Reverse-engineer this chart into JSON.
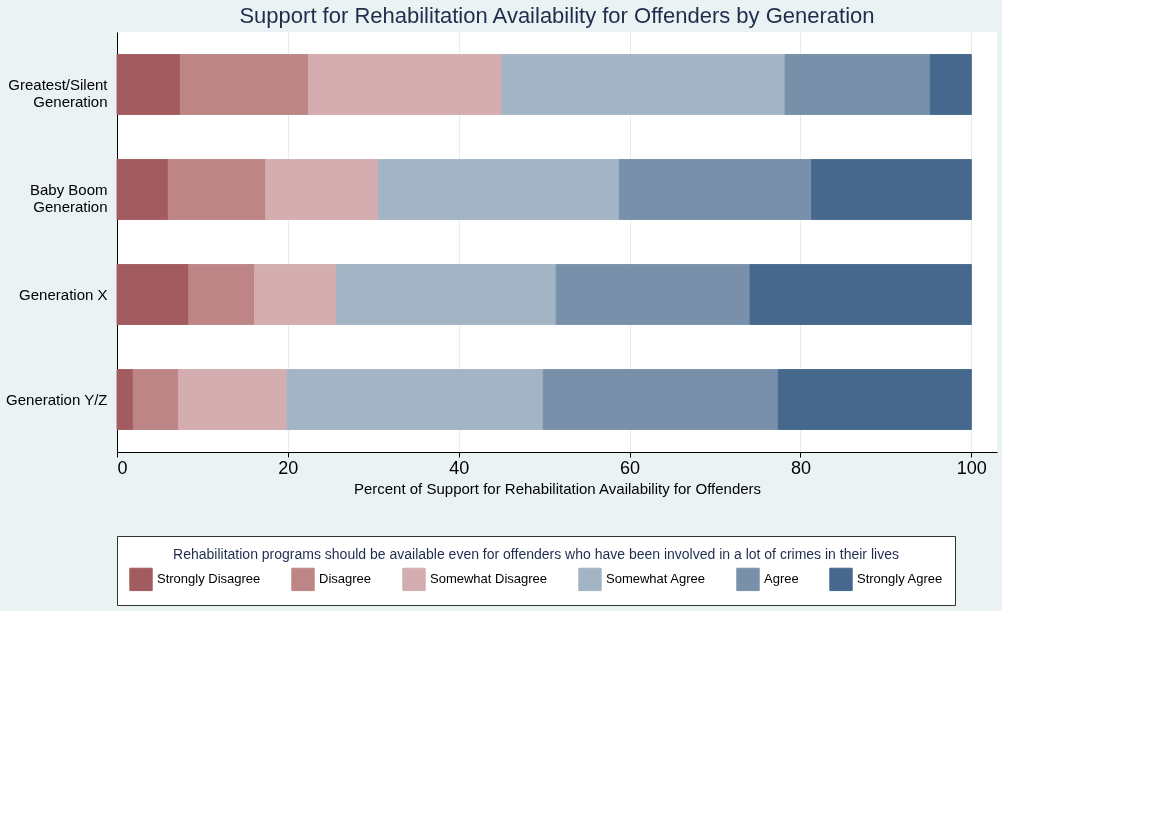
{
  "chart_data": {
    "type": "bar",
    "orientation": "horizontal",
    "stacked": true,
    "title": "Support for Rehabilitation Availability for Offenders by Generation",
    "xlabel": "Percent of Support for Rehabilitation Availability for Offenders",
    "legend_title": "Rehabilitation programs should be available even for offenders who have been involved in a lot of crimes in their lives",
    "categories": [
      "Greatest/Silent Generation",
      "Baby Boom Generation",
      "Generation X",
      "Generation Y/Z"
    ],
    "series": [
      {
        "name": "Strongly Disagree",
        "color": "#a25b5f",
        "values": [
          7.4,
          6.0,
          8.4,
          1.9
        ]
      },
      {
        "name": "Disagree",
        "color": "#bd8586",
        "values": [
          15.0,
          11.4,
          7.7,
          5.3
        ]
      },
      {
        "name": "Somewhat Disagree",
        "color": "#d4adb0",
        "values": [
          22.7,
          13.2,
          9.6,
          12.7
        ]
      },
      {
        "name": "Somewhat Agree",
        "color": "#a3b4c5",
        "values": [
          33.1,
          28.2,
          25.7,
          30.0
        ]
      },
      {
        "name": "Agree",
        "color": "#7890a9",
        "values": [
          17.0,
          22.5,
          22.7,
          27.5
        ]
      },
      {
        "name": "Strongly Agree",
        "color": "#45688c",
        "values": [
          4.8,
          18.7,
          25.9,
          22.6
        ]
      }
    ],
    "xlim": [
      0,
      103
    ],
    "xticks": [
      0,
      20,
      40,
      60,
      80,
      100
    ],
    "grid": "x",
    "legend": "bottom"
  }
}
